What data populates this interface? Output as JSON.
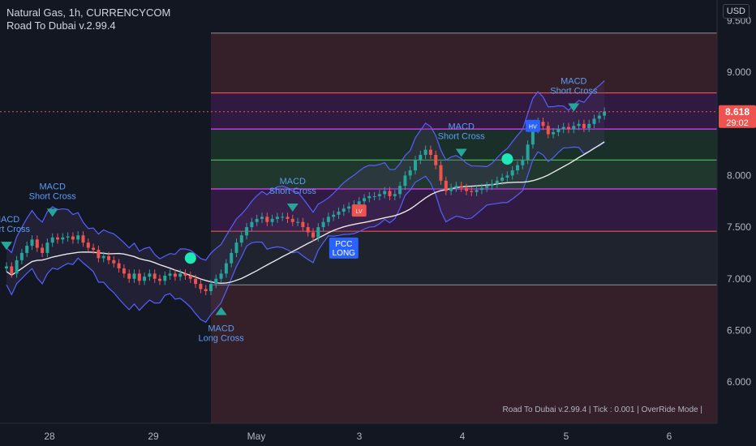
{
  "header": {
    "title": "Natural Gas, 1h, CURRENCYCOM",
    "indicator": "Road To Dubai v.2.99.4",
    "currency": "USD"
  },
  "footer_note": "Road To Dubai v.2.99.4 | Tick : 0.001 | OverRide Mode |",
  "price_tag": {
    "price": "8.618",
    "countdown": "29:02"
  },
  "colors": {
    "background": "#131722",
    "up": "#26a69a",
    "down": "#ef5350",
    "band": "#5560ff",
    "ma": "#e8e8e8",
    "green_signal": "#1de9b6",
    "label_blue": "#2962ff"
  },
  "chart_data": {
    "type": "candlestick",
    "ylim": [
      5.6,
      9.7
    ],
    "y_ticks": [
      "9.500",
      "9.000",
      "8.500",
      "8.000",
      "7.500",
      "7.000",
      "6.500",
      "6.000"
    ],
    "x_ticks": [
      "28",
      "29",
      "May",
      "3",
      "4",
      "5",
      "6"
    ],
    "close_series": [
      7.12,
      7.05,
      7.18,
      7.25,
      7.32,
      7.38,
      7.3,
      7.25,
      7.35,
      7.4,
      7.38,
      7.4,
      7.41,
      7.38,
      7.42,
      7.35,
      7.3,
      7.28,
      7.2,
      7.22,
      7.18,
      7.15,
      7.1,
      7.05,
      7.0,
      7.05,
      6.98,
      7.02,
      7.05,
      7.0,
      6.98,
      7.03,
      7.05,
      7.02,
      7.05,
      7.03,
      7.0,
      6.95,
      6.9,
      6.88,
      6.95,
      7.0,
      7.05,
      7.15,
      7.25,
      7.35,
      7.42,
      7.5,
      7.55,
      7.58,
      7.6,
      7.55,
      7.58,
      7.6,
      7.6,
      7.58,
      7.55,
      7.55,
      7.5,
      7.45,
      7.4,
      7.5,
      7.55,
      7.6,
      7.62,
      7.65,
      7.68,
      7.7,
      7.72,
      7.75,
      7.78,
      7.8,
      7.8,
      7.82,
      7.85,
      7.8,
      7.82,
      7.9,
      8.0,
      8.05,
      8.15,
      8.2,
      8.25,
      8.2,
      8.1,
      7.95,
      7.85,
      7.88,
      7.9,
      7.88,
      7.85,
      7.84,
      7.86,
      7.88,
      7.9,
      7.92,
      7.95,
      7.98,
      8.0,
      8.05,
      8.1,
      8.15,
      8.3,
      8.45,
      8.52,
      8.48,
      8.4,
      8.42,
      8.45,
      8.47,
      8.45,
      8.48,
      8.5,
      8.46,
      8.5,
      8.55,
      8.58,
      8.62
    ],
    "levels": [
      {
        "y": 9.38,
        "color": "#787b86"
      },
      {
        "y": 8.8,
        "color": "#ef5350"
      },
      {
        "y": 8.45,
        "color": "#e040fb"
      },
      {
        "y": 8.15,
        "color": "#4caf50"
      },
      {
        "y": 7.87,
        "color": "#e040fb"
      },
      {
        "y": 7.46,
        "color": "#ef5350"
      },
      {
        "y": 6.94,
        "color": "#787b86"
      }
    ],
    "zones": [
      {
        "y1": 9.38,
        "y2": 8.8,
        "color": "rgba(239,83,80,0.16)"
      },
      {
        "y1": 8.8,
        "y2": 8.45,
        "color": "rgba(156,39,176,0.22)"
      },
      {
        "y1": 8.45,
        "y2": 8.15,
        "color": "rgba(76,175,80,0.16)"
      },
      {
        "y1": 8.15,
        "y2": 7.87,
        "color": "rgba(76,175,80,0.22)"
      },
      {
        "y1": 7.87,
        "y2": 7.46,
        "color": "rgba(156,39,176,0.22)"
      },
      {
        "y1": 7.46,
        "y2": 6.94,
        "color": "rgba(120,123,134,0.12)"
      },
      {
        "y1": 6.94,
        "y2": 5.6,
        "color": "rgba(239,83,80,0.16)"
      }
    ],
    "annotations": [
      {
        "text": [
          "MACD",
          "Short Cross"
        ],
        "color": "#5b9cf6",
        "kind": "bear",
        "at": 9,
        "y": 7.6
      },
      {
        "text": [
          "MACD",
          "Short Cross"
        ],
        "color": "#5b9cf6",
        "kind": "bear",
        "at": 56,
        "y": 7.65
      },
      {
        "text": [
          "MACD",
          "Short Cross"
        ],
        "color": "#5b9cf6",
        "kind": "bear",
        "at": 89,
        "y": 8.18
      },
      {
        "text": [
          "MACD",
          "Short Cross"
        ],
        "color": "#5b9cf6",
        "kind": "bear",
        "at": 111,
        "y": 8.62
      },
      {
        "text": [
          "MACD",
          "Long Cross"
        ],
        "color": "#5b9cf6",
        "kind": "bull",
        "at": 42,
        "y": 6.68
      },
      {
        "text": [
          "MACD",
          "Short Cross"
        ],
        "color": "#5b9cf6",
        "kind": "bear",
        "at": 0,
        "y": 7.28
      }
    ],
    "tags": [
      {
        "text": [
          "PCC",
          "LONG"
        ],
        "at": 66,
        "y": 7.4
      },
      {
        "text": [
          "LV"
        ],
        "at": 69,
        "y": 7.72
      },
      {
        "text": [
          "HV"
        ],
        "at": 103,
        "y": 8.54
      }
    ]
  }
}
